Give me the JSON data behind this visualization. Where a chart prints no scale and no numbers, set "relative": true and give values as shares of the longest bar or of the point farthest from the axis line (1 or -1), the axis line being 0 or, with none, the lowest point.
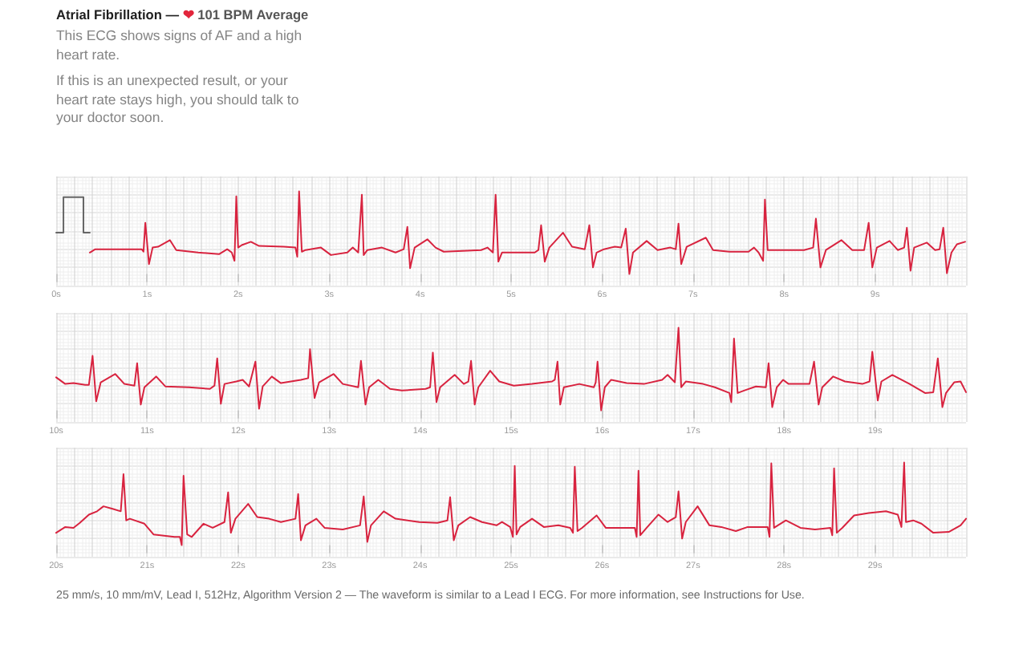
{
  "chart_data": [
    {
      "type": "line",
      "title": "Atrial Fibrillation — ❤ 101 BPM Average",
      "subtitle": "This ECG shows signs of AF and a high heart rate.",
      "annotations": [
        "If this is an unexpected result, or your heart rate stays high, you should talk to your doctor soon."
      ],
      "relative": true,
      "xlim": [
        0,
        10
      ],
      "xticks": [
        {
          "value": 0,
          "label": "0s"
        },
        {
          "value": 1,
          "label": "1s"
        },
        {
          "value": 2,
          "label": "2s"
        },
        {
          "value": 3,
          "label": "3s"
        },
        {
          "value": 4,
          "label": "4s"
        },
        {
          "value": 5,
          "label": "5s"
        },
        {
          "value": 6,
          "label": "6s"
        },
        {
          "value": 7,
          "label": "7s"
        },
        {
          "value": 8,
          "label": "8s"
        },
        {
          "value": 9,
          "label": "9s"
        }
      ],
      "tick_labels": "x",
      "grid": true,
      "marker": "none",
      "series": [
        {
          "color": "#666666",
          "x": [
            0,
            0.08,
            0.08,
            0.3,
            0.3,
            0.37
          ],
          "values": [
            0.5,
            0.5,
            0.93,
            0.93,
            0.5,
            0.5
          ]
        },
        {
          "color": "#d8233f",
          "x": [
            0.37,
            0.43,
            0.94,
            0.96,
            0.98,
            1.02,
            1.06,
            1.12,
            1.25,
            1.32,
            1.56,
            1.79,
            1.88,
            1.93,
            1.96,
            1.98,
            2.0,
            2.04,
            2.14,
            2.23,
            2.5,
            2.63,
            2.65,
            2.67,
            2.7,
            2.74,
            2.91,
            3.02,
            3.2,
            3.26,
            3.32,
            3.36,
            3.38,
            3.42,
            3.58,
            3.73,
            3.82,
            3.86,
            3.89,
            3.94,
            4.08,
            4.17,
            4.26,
            4.67,
            4.74,
            4.8,
            4.83,
            4.86,
            4.9,
            5.05,
            5.26,
            5.3,
            5.33,
            5.37,
            5.42,
            5.57,
            5.67,
            5.81,
            5.86,
            5.9,
            5.94,
            6.02,
            6.14,
            6.21,
            6.26,
            6.3,
            6.34,
            6.49,
            6.61,
            6.75,
            6.81,
            6.84,
            6.87,
            6.93,
            7.14,
            7.22,
            7.4,
            7.61,
            7.67,
            7.72,
            7.77,
            7.79,
            7.82,
            7.99,
            8.22,
            8.32,
            8.35,
            8.4,
            8.46,
            8.63,
            8.75,
            8.88,
            8.93,
            8.97,
            9.02,
            9.16,
            9.25,
            9.32,
            9.35,
            9.39,
            9.43,
            9.57,
            9.66,
            9.71,
            9.75,
            9.79,
            9.84,
            9.9,
            9.99
          ],
          "values": [
            0.26,
            0.3,
            0.3,
            0.27,
            0.62,
            0.12,
            0.32,
            0.33,
            0.41,
            0.29,
            0.26,
            0.24,
            0.3,
            0.26,
            0.16,
            0.94,
            0.32,
            0.35,
            0.39,
            0.34,
            0.33,
            0.32,
            0.21,
            1.0,
            0.27,
            0.29,
            0.32,
            0.23,
            0.26,
            0.32,
            0.26,
            0.96,
            0.23,
            0.29,
            0.32,
            0.26,
            0.3,
            0.57,
            0.07,
            0.32,
            0.42,
            0.32,
            0.27,
            0.29,
            0.32,
            0.26,
            0.96,
            0.15,
            0.26,
            0.26,
            0.26,
            0.29,
            0.59,
            0.15,
            0.32,
            0.5,
            0.33,
            0.3,
            0.59,
            0.08,
            0.26,
            0.3,
            0.33,
            0.32,
            0.55,
            0,
            0.26,
            0.4,
            0.29,
            0.32,
            0.3,
            0.61,
            0.12,
            0.33,
            0.44,
            0.29,
            0.27,
            0.27,
            0.32,
            0.26,
            0.16,
            0.9,
            0.29,
            0.29,
            0.29,
            0.32,
            0.67,
            0.08,
            0.29,
            0.41,
            0.29,
            0.29,
            0.62,
            0.08,
            0.32,
            0.4,
            0.29,
            0.32,
            0.56,
            0.04,
            0.32,
            0.38,
            0.29,
            0.3,
            0.56,
            0.01,
            0.26,
            0.36,
            0.39
          ]
        }
      ]
    },
    {
      "type": "line",
      "relative": true,
      "xlim": [
        10,
        20
      ],
      "xticks": [
        {
          "value": 10,
          "label": "10s"
        },
        {
          "value": 11,
          "label": "11s"
        },
        {
          "value": 12,
          "label": "12s"
        },
        {
          "value": 13,
          "label": "13s"
        },
        {
          "value": 14,
          "label": "14s"
        },
        {
          "value": 15,
          "label": "15s"
        },
        {
          "value": 16,
          "label": "16s"
        },
        {
          "value": 17,
          "label": "17s"
        },
        {
          "value": 18,
          "label": "18s"
        },
        {
          "value": 19,
          "label": "19s"
        }
      ],
      "tick_labels": "x",
      "grid": true,
      "marker": "none",
      "series": [
        {
          "color": "#d8233f",
          "x": [
            10.0,
            10.1,
            10.19,
            10.32,
            10.36,
            10.4,
            10.44,
            10.49,
            10.65,
            10.75,
            10.86,
            10.89,
            10.93,
            10.97,
            11.1,
            11.2,
            11.46,
            11.69,
            11.74,
            11.77,
            11.81,
            11.85,
            11.98,
            12.05,
            12.12,
            12.19,
            12.23,
            12.27,
            12.37,
            12.47,
            12.69,
            12.77,
            12.79,
            12.84,
            12.89,
            13.05,
            13.15,
            13.32,
            13.35,
            13.4,
            13.44,
            13.54,
            13.67,
            13.8,
            14.06,
            14.11,
            14.14,
            14.18,
            14.22,
            14.38,
            14.48,
            14.53,
            14.56,
            14.6,
            14.64,
            14.77,
            14.87,
            15.03,
            15.23,
            15.45,
            15.48,
            15.51,
            15.54,
            15.58,
            15.75,
            15.91,
            15.93,
            15.95,
            15.99,
            16.03,
            16.1,
            16.27,
            16.46,
            16.66,
            16.72,
            16.8,
            16.84,
            16.87,
            16.92,
            17.11,
            17.24,
            17.4,
            17.42,
            17.45,
            17.49,
            17.56,
            17.69,
            17.8,
            17.83,
            17.87,
            17.92,
            17.99,
            18.05,
            18.28,
            18.33,
            18.38,
            18.42,
            18.54,
            18.67,
            18.86,
            18.94,
            18.97,
            19.03,
            19.07,
            19.19,
            19.38,
            19.55,
            19.64,
            19.69,
            19.74,
            19.78,
            19.87,
            19.94,
            20.0
          ],
          "values": [
            0.4,
            0.32,
            0.33,
            0.31,
            0.31,
            0.66,
            0.11,
            0.34,
            0.44,
            0.32,
            0.3,
            0.57,
            0.07,
            0.28,
            0.41,
            0.29,
            0.28,
            0.26,
            0.3,
            0.63,
            0.08,
            0.32,
            0.35,
            0.37,
            0.29,
            0.59,
            0.02,
            0.29,
            0.41,
            0.33,
            0.37,
            0.39,
            0.74,
            0.15,
            0.34,
            0.44,
            0.32,
            0.28,
            0.6,
            0.07,
            0.28,
            0.37,
            0.26,
            0.24,
            0.26,
            0.28,
            0.7,
            0.1,
            0.28,
            0.43,
            0.32,
            0.35,
            0.6,
            0.07,
            0.28,
            0.48,
            0.35,
            0.3,
            0.32,
            0.35,
            0.37,
            0.59,
            0.07,
            0.28,
            0.32,
            0.28,
            0.34,
            0.59,
            0,
            0.28,
            0.37,
            0.33,
            0.32,
            0.37,
            0.43,
            0.34,
            1.0,
            0.28,
            0.35,
            0.32,
            0.28,
            0.21,
            0.1,
            0.87,
            0.21,
            0.24,
            0.29,
            0.28,
            0.57,
            0.04,
            0.28,
            0.37,
            0.32,
            0.32,
            0.59,
            0.07,
            0.28,
            0.41,
            0.35,
            0.32,
            0.35,
            0.71,
            0.12,
            0.35,
            0.43,
            0.32,
            0.21,
            0.22,
            0.63,
            0.04,
            0.21,
            0.34,
            0.35,
            0.22
          ]
        }
      ]
    },
    {
      "type": "line",
      "annotations": [
        "25 mm/s, 10 mm/mV, Lead I, 512Hz, Algorithm Version 2 — The waveform is similar to a Lead I ECG. For more information, see Instructions for Use."
      ],
      "relative": true,
      "xlim": [
        20,
        30
      ],
      "xticks": [
        {
          "value": 20,
          "label": "20s"
        },
        {
          "value": 21,
          "label": "21s"
        },
        {
          "value": 22,
          "label": "22s"
        },
        {
          "value": 23,
          "label": "23s"
        },
        {
          "value": 24,
          "label": "24s"
        },
        {
          "value": 25,
          "label": "25s"
        },
        {
          "value": 26,
          "label": "26s"
        },
        {
          "value": 27,
          "label": "27s"
        },
        {
          "value": 28,
          "label": "28s"
        },
        {
          "value": 29,
          "label": "29s"
        }
      ],
      "tick_labels": "x",
      "grid": true,
      "marker": "none",
      "series": [
        {
          "color": "#d8233f",
          "x": [
            20.0,
            20.1,
            20.19,
            20.26,
            20.36,
            20.45,
            20.52,
            20.62,
            20.71,
            20.74,
            20.77,
            20.81,
            20.97,
            21.07,
            21.3,
            21.36,
            21.38,
            21.4,
            21.44,
            21.49,
            21.62,
            21.72,
            21.85,
            21.89,
            21.92,
            21.97,
            22.11,
            22.21,
            22.34,
            22.47,
            22.63,
            22.66,
            22.69,
            22.74,
            22.86,
            22.95,
            23.15,
            23.34,
            23.38,
            23.42,
            23.46,
            23.6,
            23.73,
            23.99,
            24.19,
            24.3,
            24.33,
            24.37,
            24.42,
            24.55,
            24.68,
            24.84,
            24.9,
            24.99,
            25.02,
            25.04,
            25.06,
            25.1,
            25.23,
            25.36,
            25.52,
            25.65,
            25.68,
            25.7,
            25.73,
            25.78,
            25.94,
            26.04,
            26.23,
            26.36,
            26.38,
            26.4,
            26.42,
            26.49,
            26.62,
            26.72,
            26.81,
            26.84,
            26.88,
            26.92,
            27.05,
            27.18,
            27.31,
            27.47,
            27.6,
            27.82,
            27.84,
            27.86,
            27.89,
            28.02,
            28.18,
            28.34,
            28.51,
            28.53,
            28.55,
            28.58,
            28.64,
            28.77,
            28.93,
            29.12,
            29.25,
            29.29,
            29.32,
            29.34,
            29.42,
            29.51,
            29.64,
            29.81,
            29.94,
            30.0
          ],
          "values": [
            0.15,
            0.22,
            0.21,
            0.27,
            0.37,
            0.41,
            0.47,
            0.44,
            0.41,
            0.86,
            0.3,
            0.32,
            0.26,
            0.13,
            0.1,
            0.1,
            0,
            0.84,
            0.13,
            0.1,
            0.26,
            0.21,
            0.28,
            0.64,
            0.15,
            0.32,
            0.5,
            0.34,
            0.32,
            0.28,
            0.32,
            0.62,
            0.06,
            0.24,
            0.32,
            0.21,
            0.19,
            0.24,
            0.59,
            0.04,
            0.24,
            0.41,
            0.32,
            0.28,
            0.27,
            0.3,
            0.58,
            0.06,
            0.24,
            0.34,
            0.28,
            0.24,
            0.28,
            0.22,
            0.1,
            0.96,
            0.13,
            0.22,
            0.32,
            0.22,
            0.24,
            0.21,
            0.15,
            0.95,
            0.17,
            0.21,
            0.36,
            0.21,
            0.21,
            0.21,
            0.1,
            0.9,
            0.12,
            0.21,
            0.37,
            0.28,
            0.34,
            0.65,
            0.08,
            0.28,
            0.47,
            0.24,
            0.22,
            0.17,
            0.22,
            0.22,
            0.1,
            0.99,
            0.21,
            0.3,
            0.21,
            0.19,
            0.21,
            0.12,
            0.93,
            0.15,
            0.21,
            0.36,
            0.39,
            0.41,
            0.37,
            0.22,
            1.0,
            0.28,
            0.3,
            0.26,
            0.15,
            0.16,
            0.24,
            0.32
          ]
        }
      ]
    }
  ]
}
